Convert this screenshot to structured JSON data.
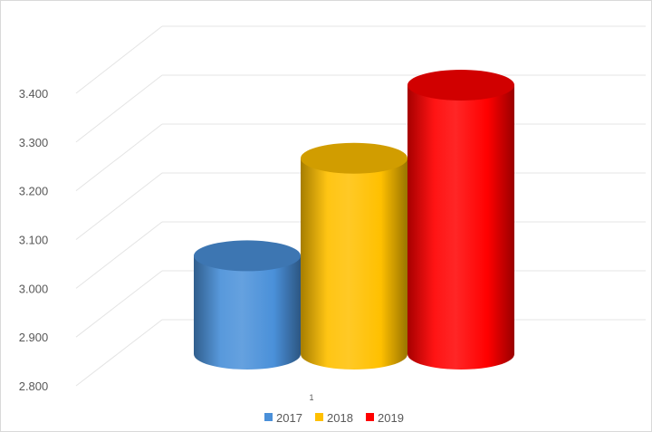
{
  "chart_data": {
    "type": "bar",
    "style": "3d-cylinder",
    "categories": [
      "1"
    ],
    "series": [
      {
        "name": "2017",
        "values": [
          3.05
        ],
        "color": "#4a90d9"
      },
      {
        "name": "2018",
        "values": [
          3.25
        ],
        "color": "#ffc000"
      },
      {
        "name": "2019",
        "values": [
          3.4
        ],
        "color": "#ff0000"
      }
    ],
    "yticks": [
      "2.800",
      "2.900",
      "3.000",
      "3.100",
      "3.200",
      "3.300",
      "3.400"
    ],
    "ylim": [
      2.8,
      3.4
    ],
    "grid": true,
    "legend": "bottom"
  }
}
